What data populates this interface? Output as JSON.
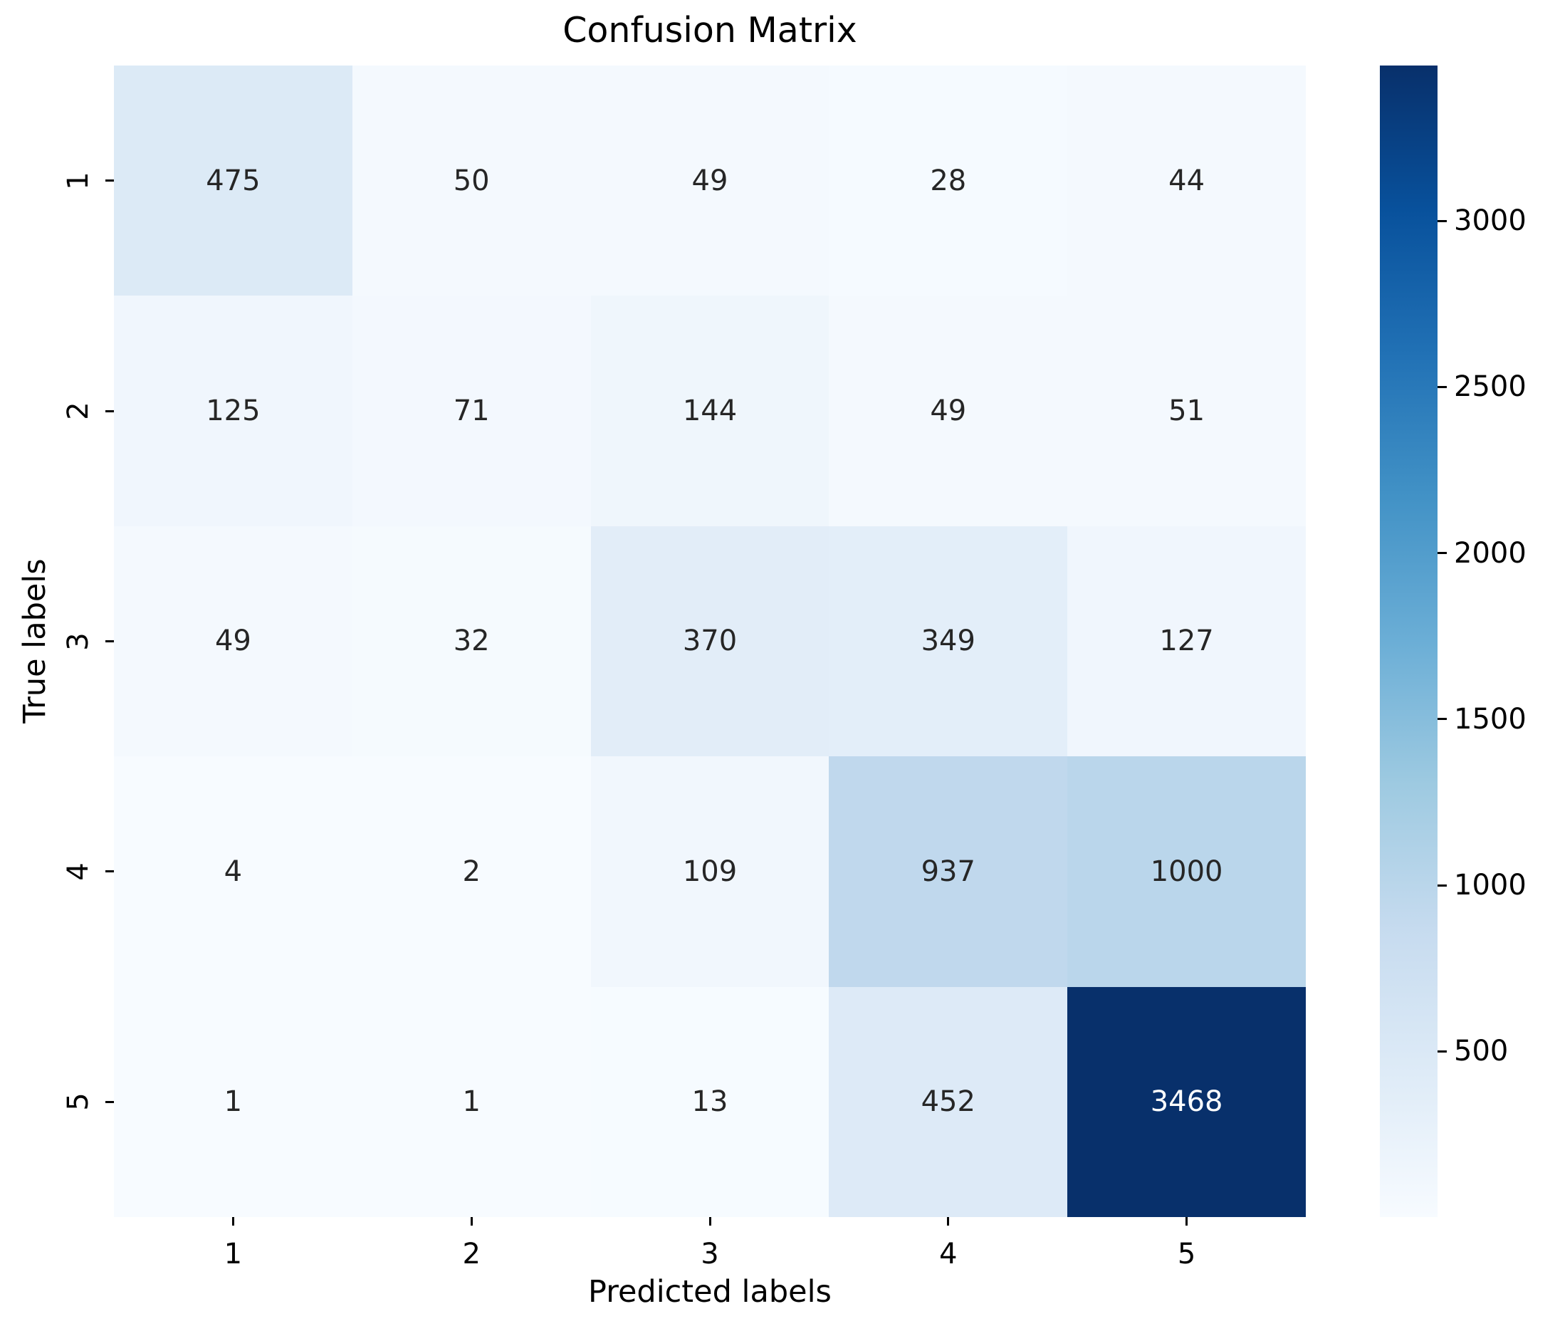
{
  "title": "Confusion Matrix",
  "axes": {
    "xlabel": "Predicted labels",
    "ylabel": "True labels",
    "xticklabels": [
      "1",
      "2",
      "3",
      "4",
      "5"
    ],
    "yticklabels": [
      "1",
      "2",
      "3",
      "4",
      "5"
    ]
  },
  "colorbar": {
    "colormap": "Blues",
    "vmin": 1,
    "vmax": 3468,
    "tick_values": [
      500,
      1000,
      1500,
      2000,
      2500,
      3000
    ],
    "gradient_stops_bottom_to_top": [
      "#F7FBFF",
      "#DEEBF7",
      "#C6DBEF",
      "#9ECAE1",
      "#6BAED6",
      "#4292C6",
      "#2171B5",
      "#08519C",
      "#08306B"
    ]
  },
  "chart_data": {
    "type": "heatmap",
    "title": "Confusion Matrix",
    "xlabel": "Predicted labels",
    "ylabel": "True labels",
    "x_categories": [
      "1",
      "2",
      "3",
      "4",
      "5"
    ],
    "y_categories": [
      "1",
      "2",
      "3",
      "4",
      "5"
    ],
    "matrix": [
      [
        475,
        50,
        49,
        28,
        44
      ],
      [
        125,
        71,
        144,
        49,
        51
      ],
      [
        49,
        32,
        370,
        349,
        127
      ],
      [
        4,
        2,
        109,
        937,
        1000
      ],
      [
        1,
        1,
        13,
        452,
        3468
      ]
    ],
    "vmin": 1,
    "vmax": 3468,
    "colormap": "Blues",
    "legend_position": "right-colorbar",
    "grid": false,
    "cell_colors": [
      [
        "#DCEAF6",
        "#F4F9FE",
        "#F4F9FE",
        "#F5FAFF",
        "#F4F9FE"
      ],
      [
        "#F0F6FD",
        "#F3F8FE",
        "#EFF6FC",
        "#F4F9FE",
        "#F4F9FE"
      ],
      [
        "#F4F9FE",
        "#F5FAFE",
        "#E2EDF8",
        "#E3EEF9",
        "#F0F6FD"
      ],
      [
        "#F7FBFF",
        "#F7FBFF",
        "#F1F7FD",
        "#C0D8ED",
        "#BAD6EB"
      ],
      [
        "#F7FBFF",
        "#F7FBFF",
        "#F6FBFF",
        "#DDEAF7",
        "#08306B"
      ]
    ],
    "cell_text_colors": [
      [
        "#262626",
        "#262626",
        "#262626",
        "#262626",
        "#262626"
      ],
      [
        "#262626",
        "#262626",
        "#262626",
        "#262626",
        "#262626"
      ],
      [
        "#262626",
        "#262626",
        "#262626",
        "#262626",
        "#262626"
      ],
      [
        "#262626",
        "#262626",
        "#262626",
        "#262626",
        "#262626"
      ],
      [
        "#262626",
        "#262626",
        "#262626",
        "#262626",
        "#FFFFFF"
      ]
    ]
  }
}
